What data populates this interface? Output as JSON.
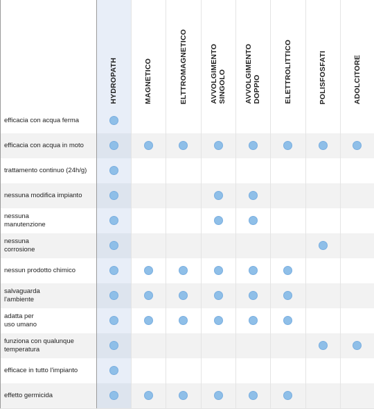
{
  "columns": [
    "HYDROPATH",
    "MAGNETICO",
    "ELTTROMAGNETICO",
    "AVVOLGIMENTO\nSINGOLO",
    "AVVOLGIMENTO\nDOPPIO",
    "ELETTROLITTICO",
    "POLISFOSFATI",
    "ADOLCITORE"
  ],
  "highlight_column": 0,
  "accent_color": "#8fbfe8",
  "rows": [
    {
      "label": "efficacia con acqua ferma",
      "checks": [
        true,
        false,
        false,
        false,
        false,
        false,
        false,
        false
      ]
    },
    {
      "label": "efficacia con acqua in moto",
      "checks": [
        true,
        true,
        true,
        true,
        true,
        true,
        true,
        true
      ]
    },
    {
      "label": "trattamento continuo (24h/g)",
      "checks": [
        true,
        false,
        false,
        false,
        false,
        false,
        false,
        false
      ]
    },
    {
      "label": "nessuna modifica impianto",
      "checks": [
        true,
        false,
        false,
        true,
        true,
        false,
        false,
        false
      ]
    },
    {
      "label": "nessuna\nmanutenzione",
      "checks": [
        true,
        false,
        false,
        true,
        true,
        false,
        false,
        false
      ]
    },
    {
      "label": "nessuna\ncorrosione",
      "checks": [
        true,
        false,
        false,
        false,
        false,
        false,
        true,
        false
      ]
    },
    {
      "label": "nessun prodotto chimico",
      "checks": [
        true,
        true,
        true,
        true,
        true,
        true,
        false,
        false
      ]
    },
    {
      "label": "salvaguarda\nl'ambiente",
      "checks": [
        true,
        true,
        true,
        true,
        true,
        true,
        false,
        false
      ]
    },
    {
      "label": "adatta per\nuso umano",
      "checks": [
        true,
        true,
        true,
        true,
        true,
        true,
        false,
        false
      ]
    },
    {
      "label": "funziona con qualunque\ntemperatura",
      "checks": [
        true,
        false,
        false,
        false,
        false,
        false,
        true,
        true
      ]
    },
    {
      "label": "efficace in tutto l'impianto",
      "checks": [
        true,
        false,
        false,
        false,
        false,
        false,
        false,
        false
      ]
    },
    {
      "label": "effetto germicida",
      "checks": [
        true,
        true,
        true,
        true,
        true,
        true,
        false,
        false
      ]
    }
  ]
}
